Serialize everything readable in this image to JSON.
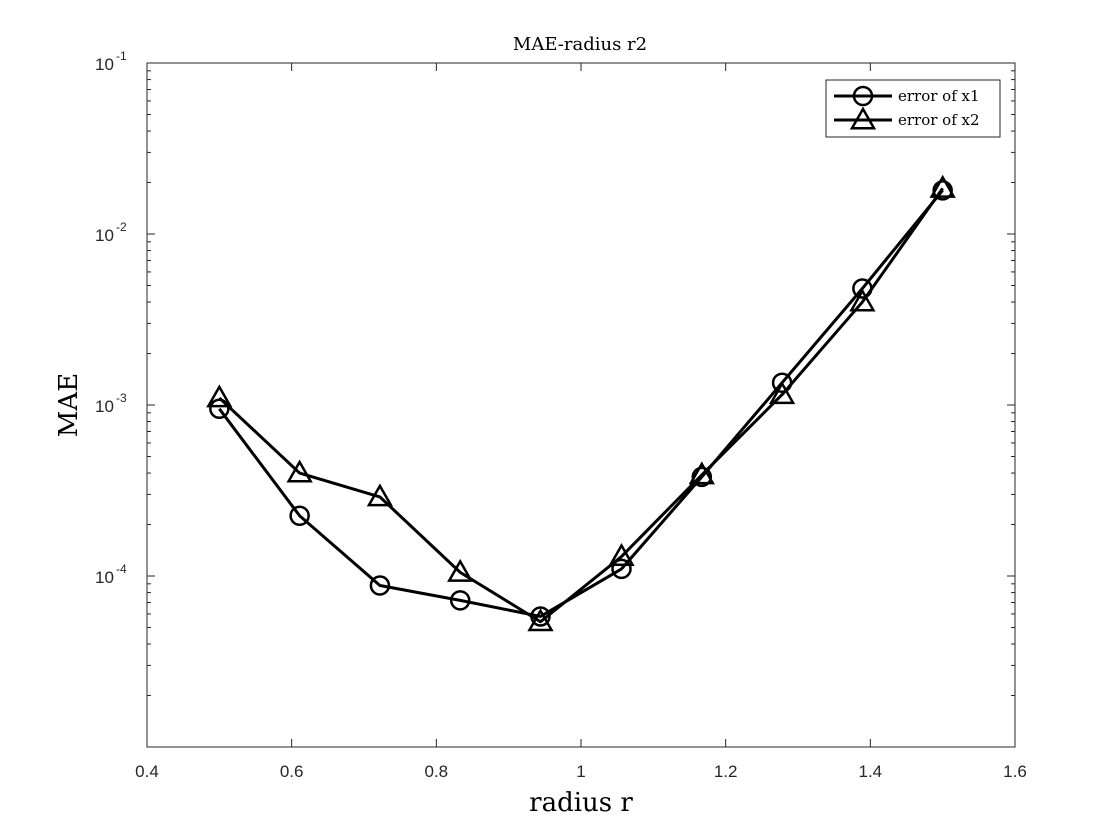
{
  "chart_data": {
    "type": "line",
    "title": "MAE-radius r2",
    "xlabel": "radius r",
    "ylabel": "MAE",
    "xlim": [
      0.4,
      1.6
    ],
    "ylim": [
      1e-05,
      0.1
    ],
    "yscale": "log",
    "grid": false,
    "legend_position": "top-right",
    "x_ticks": [
      "0.4",
      "0.6",
      "0.8",
      "1",
      "1.2",
      "1.4",
      "1.6"
    ],
    "y_ticks": [
      {
        "base": "10",
        "exp": "-4",
        "value": 0.0001
      },
      {
        "base": "10",
        "exp": "-3",
        "value": 0.001
      },
      {
        "base": "10",
        "exp": "-2",
        "value": 0.01
      },
      {
        "base": "10",
        "exp": "-1",
        "value": 0.1
      }
    ],
    "x": [
      0.5,
      0.611,
      0.722,
      0.833,
      0.944,
      1.056,
      1.167,
      1.278,
      1.389,
      1.5
    ],
    "series": [
      {
        "name": "error of x1",
        "marker": "circle",
        "color": "#000000",
        "values": [
          0.00095,
          0.000225,
          8.8e-05,
          7.2e-05,
          5.8e-05,
          0.00011,
          0.00038,
          0.00135,
          0.0048,
          0.018
        ]
      },
      {
        "name": "error of x2",
        "marker": "triangle",
        "color": "#000000",
        "values": [
          0.0011,
          0.0004,
          0.00029,
          0.000105,
          5.4e-05,
          0.00013,
          0.00039,
          0.00115,
          0.004,
          0.0185
        ]
      }
    ]
  }
}
